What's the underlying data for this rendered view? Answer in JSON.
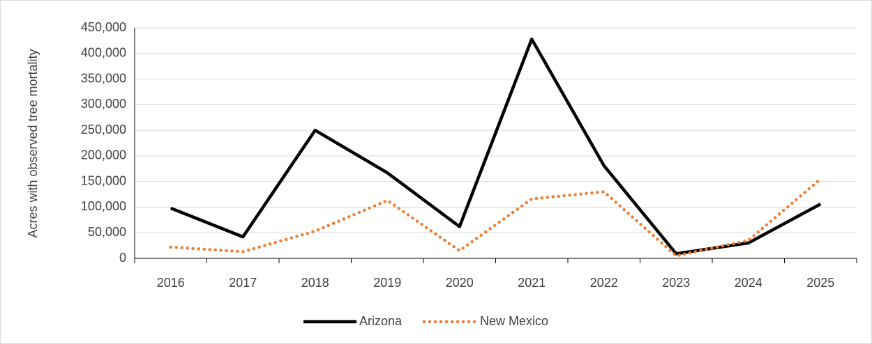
{
  "chart_data": {
    "type": "line",
    "y_label": "Acres with observed tree mortality",
    "categories": [
      "2016",
      "2017",
      "2018",
      "2019",
      "2020",
      "2021",
      "2022",
      "2023",
      "2024",
      "2025"
    ],
    "series": [
      {
        "name": "Arizona",
        "color": "#000000",
        "style": "solid",
        "values": [
          98000,
          42000,
          250000,
          167000,
          62000,
          428000,
          181000,
          9000,
          30000,
          106000
        ]
      },
      {
        "name": "New Mexico",
        "color": "#ed7d31",
        "style": "dotted",
        "values": [
          22000,
          13000,
          53000,
          113000,
          15000,
          116000,
          130000,
          5000,
          35000,
          155000
        ]
      }
    ],
    "ylim": [
      0,
      450000
    ],
    "yticks": [
      0,
      {
        "value": 50000,
        "label": "50,000"
      },
      {
        "value": 100000,
        "label": "100,000"
      },
      {
        "value": 150000,
        "label": "150,000"
      },
      {
        "value": 200000,
        "label": "200,000"
      },
      {
        "value": 250000,
        "label": "250,000"
      },
      {
        "value": 300000,
        "label": "300,000"
      },
      {
        "value": 350000,
        "label": "350,000"
      },
      {
        "value": 400000,
        "label": "400,000"
      },
      {
        "value": 450000,
        "label": "450,000"
      }
    ],
    "grid": true,
    "legend": "bottom"
  }
}
